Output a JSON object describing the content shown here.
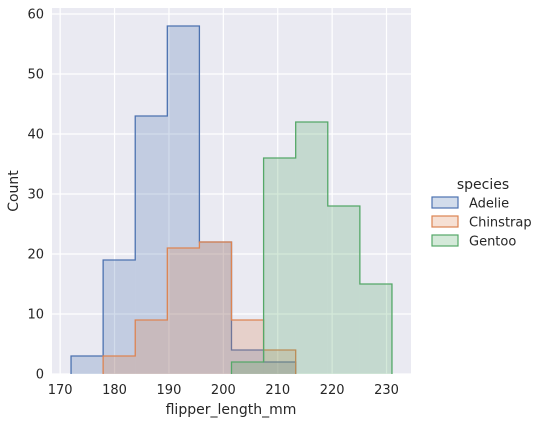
{
  "chart_data": {
    "type": "histogram",
    "xlabel": "flipper_length_mm",
    "ylabel": "Count",
    "xlim": [
      168.5,
      234.5
    ],
    "ylim": [
      0,
      61
    ],
    "xticks": [
      170,
      180,
      190,
      200,
      210,
      220,
      230
    ],
    "yticks": [
      0,
      10,
      20,
      30,
      40,
      50,
      60
    ],
    "bin_width": 5.9,
    "grid": true,
    "legend_title": "species",
    "legend_position": "right",
    "series": [
      {
        "name": "Adelie",
        "color": "#4c72b0",
        "bin_edges": [
          172.0,
          177.9,
          183.8,
          189.7,
          195.6,
          201.5,
          207.4,
          213.3
        ],
        "counts": [
          3,
          19,
          43,
          58,
          22,
          4,
          2
        ]
      },
      {
        "name": "Chinstrap",
        "color": "#dd8452",
        "bin_edges": [
          177.9,
          183.8,
          189.7,
          195.6,
          201.5,
          207.4,
          213.3
        ],
        "counts": [
          3,
          9,
          21,
          22,
          9,
          4
        ]
      },
      {
        "name": "Gentoo",
        "color": "#55a868",
        "bin_edges": [
          201.5,
          207.4,
          213.3,
          219.2,
          225.1,
          231.0
        ],
        "counts": [
          2,
          36,
          42,
          28,
          15
        ]
      }
    ]
  }
}
